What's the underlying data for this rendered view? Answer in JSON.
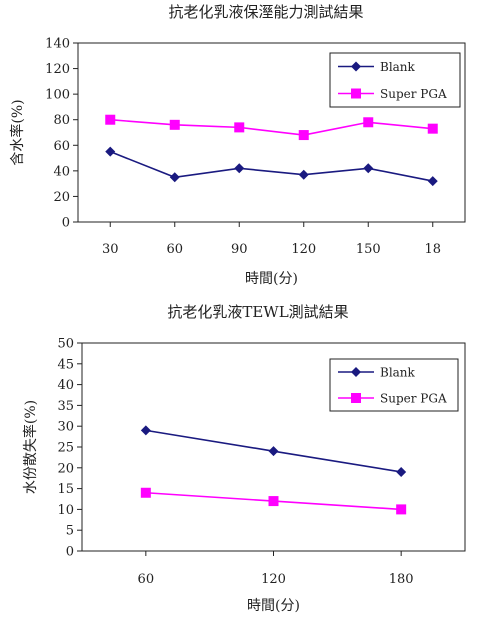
{
  "chart_data": [
    {
      "type": "line",
      "title": "抗老化乳液保溼能力測試結果",
      "xlabel": "時間(分)",
      "ylabel": "含水率(%)",
      "categories": [
        "30",
        "60",
        "90",
        "120",
        "150",
        "18"
      ],
      "ylim": [
        0,
        140
      ],
      "yticks": [
        "0",
        "20",
        "40",
        "60",
        "80",
        "100",
        "120",
        "140"
      ],
      "grid": false,
      "legend_position": "top-right",
      "series": [
        {
          "name": "Blank",
          "values": [
            55,
            35,
            42,
            37,
            42,
            32
          ],
          "color": "#1a1a80",
          "marker": "diamond"
        },
        {
          "name": "Super PGA",
          "values": [
            80,
            76,
            74,
            68,
            78,
            73
          ],
          "color": "#ff00ff",
          "marker": "square"
        }
      ]
    },
    {
      "type": "line",
      "title": "抗老化乳液TEWL測試結果",
      "xlabel": "時間(分)",
      "ylabel": "水份散失率(%)",
      "categories": [
        "60",
        "120",
        "180"
      ],
      "ylim": [
        0,
        50
      ],
      "yticks": [
        "0",
        "5",
        "10",
        "15",
        "20",
        "25",
        "30",
        "35",
        "40",
        "45",
        "50"
      ],
      "grid": false,
      "legend_position": "top-right",
      "series": [
        {
          "name": "Blank",
          "values": [
            29,
            24,
            19
          ],
          "color": "#1a1a80",
          "marker": "diamond"
        },
        {
          "name": "Super PGA",
          "values": [
            14,
            12,
            10
          ],
          "color": "#ff00ff",
          "marker": "square"
        }
      ]
    }
  ]
}
